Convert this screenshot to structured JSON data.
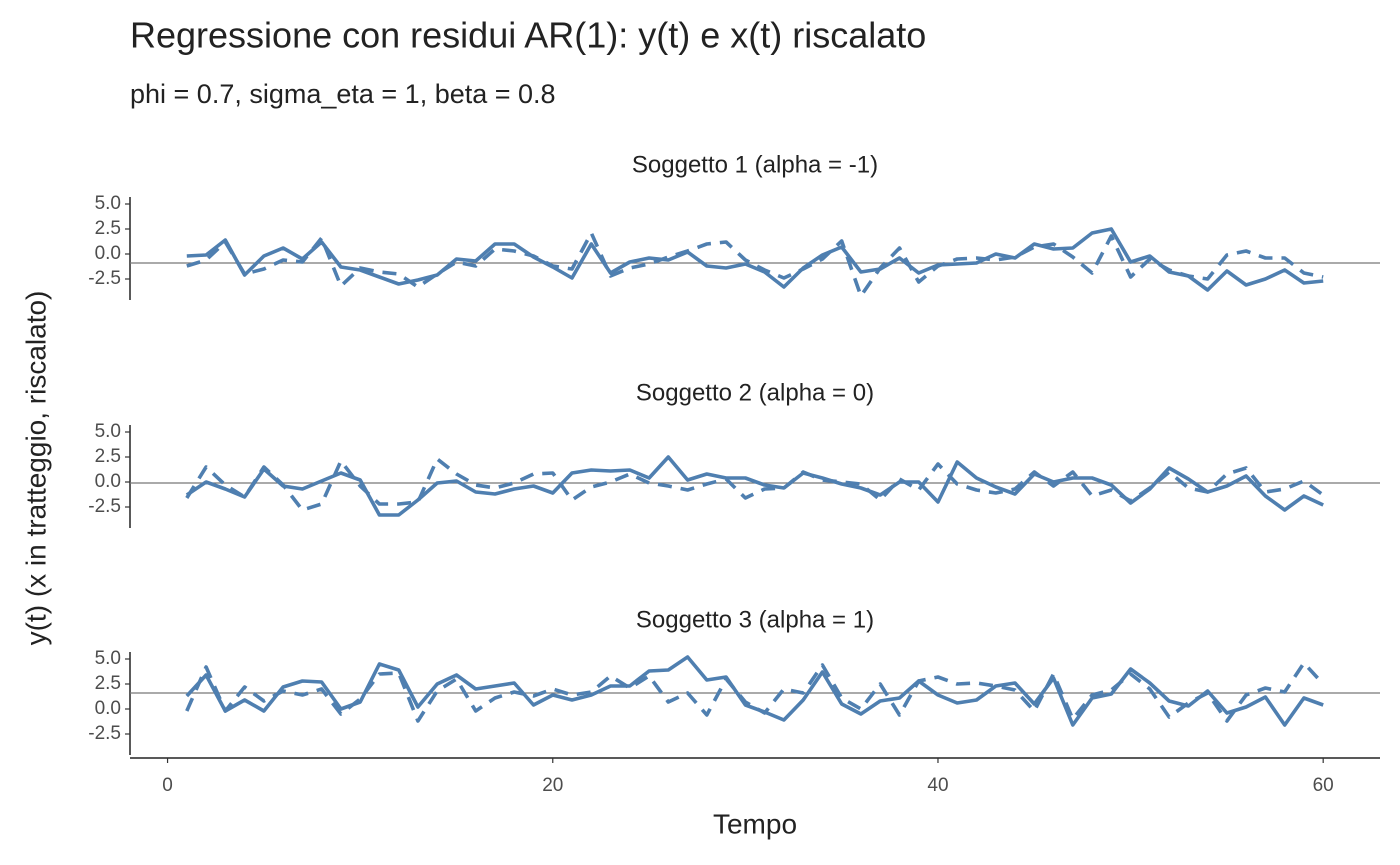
{
  "chart_data": {
    "type": "line",
    "title": "Regressione con residui AR(1): y(t) e x(t) riscalato",
    "subtitle": "phi = 0.7, sigma_eta = 1, beta = 0.8",
    "xlabel": "Tempo",
    "ylabel": "y(t)  (x in tratteggio, riscalato)",
    "color": "#4f7fb0",
    "x": [
      1,
      2,
      3,
      4,
      5,
      6,
      7,
      8,
      9,
      10,
      11,
      12,
      13,
      14,
      15,
      16,
      17,
      18,
      19,
      20,
      21,
      22,
      23,
      24,
      25,
      26,
      27,
      28,
      29,
      30,
      31,
      32,
      33,
      34,
      35,
      36,
      37,
      38,
      39,
      40,
      41,
      42,
      43,
      44,
      45,
      46,
      47,
      48,
      49,
      50,
      51,
      52,
      53,
      54,
      55,
      56,
      57,
      58,
      59,
      60
    ],
    "xlim": [
      -1.95,
      62.95
    ],
    "xticks": [
      0,
      20,
      40,
      60
    ],
    "ylim": [
      -4.6,
      5.7
    ],
    "yticks": [
      {
        "value": 5,
        "label": "5.0"
      },
      2.5,
      {
        "value": 0,
        "label": "0.0"
      },
      -2.5
    ],
    "panels": [
      {
        "title": "Soggetto 1 (alpha = -1)",
        "hline": -0.9,
        "series": [
          {
            "linestyle": "solid",
            "values": [
              -0.2,
              -0.1,
              1.4,
              -2.1,
              -0.2,
              0.6,
              -0.5,
              1.2,
              -1.3,
              -1.6,
              -2.3,
              -3.0,
              -2.6,
              -2.1,
              -0.5,
              -0.7,
              1.0,
              1.0,
              -0.3,
              -1.3,
              -2.4,
              1.0,
              -1.9,
              -0.8,
              -0.4,
              -0.6,
              0.2,
              -1.2,
              -1.4,
              -1.0,
              -1.8,
              -3.3,
              -1.4,
              -0.1,
              0.7,
              -1.8,
              -1.5,
              -0.4,
              -1.9,
              -1.1,
              -1.0,
              -0.9,
              0.0,
              -0.4,
              1.0,
              0.5,
              0.6,
              2.1,
              2.5,
              -0.8,
              -0.2,
              -1.8,
              -2.2,
              -3.6,
              -1.7,
              -3.1,
              -2.5,
              -1.6,
              -2.9,
              -2.7
            ]
          },
          {
            "linestyle": "dashed",
            "values": [
              -1.2,
              -0.6,
              1.2,
              -2.0,
              -1.5,
              -0.6,
              -0.8,
              1.6,
              -3.2,
              -1.4,
              -1.8,
              -2.0,
              -3.3,
              -2.0,
              -0.8,
              -1.2,
              0.5,
              0.3,
              -0.2,
              -1.2,
              -1.5,
              2.1,
              -2.2,
              -1.4,
              -1.0,
              -0.3,
              0.3,
              1.0,
              1.2,
              -0.6,
              -1.6,
              -2.4,
              -1.5,
              -0.5,
              1.3,
              -4.2,
              -1.4,
              0.6,
              -2.8,
              -1.2,
              -0.5,
              -0.4,
              -0.6,
              -0.3,
              0.7,
              1.0,
              -0.3,
              -1.9,
              1.8,
              -2.3,
              -0.5,
              -1.6,
              -2.2,
              -2.5,
              -0.1,
              0.3,
              -0.4,
              -0.4,
              -1.9,
              -2.3
            ]
          }
        ]
      },
      {
        "title": "Soggetto 2 (alpha = 0)",
        "hline": -0.1,
        "series": [
          {
            "linestyle": "solid",
            "values": [
              -1.3,
              0.0,
              -0.7,
              -1.5,
              1.3,
              -0.4,
              -0.7,
              0.1,
              0.9,
              0.2,
              -3.3,
              -3.3,
              -1.8,
              -0.1,
              0.1,
              -1.0,
              -1.2,
              -0.7,
              -0.4,
              -1.1,
              0.9,
              1.2,
              1.1,
              1.2,
              0.4,
              2.5,
              0.2,
              0.8,
              0.4,
              0.4,
              -0.3,
              -0.6,
              0.9,
              0.4,
              -0.2,
              -0.6,
              -1.3,
              0.0,
              0.0,
              -2.0,
              2.0,
              0.4,
              -0.5,
              -1.2,
              0.8,
              0.0,
              0.4,
              0.4,
              -0.3,
              -2.1,
              -0.7,
              1.4,
              0.3,
              -1.0,
              -0.4,
              0.6,
              -1.4,
              -2.8,
              -1.4,
              -2.3
            ]
          },
          {
            "linestyle": "dashed",
            "values": [
              -1.6,
              1.5,
              -0.3,
              -1.5,
              1.5,
              -0.3,
              -2.8,
              -2.2,
              2.1,
              -0.4,
              -2.2,
              -2.2,
              -2.0,
              2.3,
              0.8,
              -0.3,
              -0.6,
              -0.1,
              0.8,
              0.9,
              -1.8,
              -0.5,
              0.0,
              0.8,
              -0.1,
              -0.4,
              -0.8,
              -0.2,
              0.3,
              -1.6,
              -0.7,
              -0.6,
              1.0,
              0.2,
              0.0,
              -0.2,
              -1.8,
              0.3,
              -0.8,
              1.8,
              -0.2,
              -0.8,
              -1.1,
              -0.7,
              1.0,
              -0.4,
              1.0,
              -1.4,
              -0.8,
              -1.9,
              -0.6,
              1.0,
              -0.6,
              -1.0,
              0.8,
              1.4,
              -1.0,
              -0.7,
              0.1,
              -1.3
            ]
          }
        ]
      },
      {
        "title": "Soggetto 3 (alpha = 1)",
        "hline": 1.6,
        "series": [
          {
            "linestyle": "solid",
            "values": [
              1.3,
              3.4,
              -0.2,
              0.9,
              -0.2,
              2.2,
              2.8,
              2.7,
              0.0,
              0.7,
              4.5,
              3.9,
              0.2,
              2.5,
              3.4,
              2.0,
              2.3,
              2.6,
              0.4,
              1.4,
              0.9,
              1.4,
              2.3,
              2.3,
              3.8,
              3.9,
              5.2,
              2.9,
              3.2,
              0.4,
              -0.3,
              -1.1,
              0.9,
              3.7,
              0.5,
              -0.5,
              0.8,
              1.1,
              2.8,
              1.4,
              0.6,
              0.9,
              2.3,
              2.6,
              0.5,
              3.1,
              -1.6,
              1.1,
              1.5,
              4.0,
              2.6,
              0.8,
              0.3,
              1.8,
              -0.4,
              0.2,
              1.2,
              -1.6,
              1.1,
              0.4
            ]
          },
          {
            "linestyle": "dashed",
            "values": [
              -0.2,
              4.2,
              -0.2,
              2.2,
              0.8,
              1.8,
              1.4,
              2.0,
              -0.5,
              1.0,
              3.5,
              3.6,
              -1.2,
              1.8,
              3.0,
              -0.2,
              1.1,
              1.7,
              1.3,
              2.0,
              1.4,
              1.7,
              3.3,
              2.1,
              3.3,
              0.7,
              1.6,
              -0.6,
              3.0,
              0.7,
              -0.4,
              2.0,
              1.6,
              4.4,
              1.1,
              0.0,
              2.5,
              -0.6,
              2.8,
              3.2,
              2.5,
              2.6,
              2.3,
              1.9,
              -0.2,
              3.5,
              -1.0,
              1.4,
              1.9,
              3.5,
              2.0,
              -0.8,
              0.6,
              1.6,
              -1.2,
              1.4,
              2.1,
              1.7,
              4.6,
              2.5
            ]
          }
        ]
      }
    ]
  }
}
